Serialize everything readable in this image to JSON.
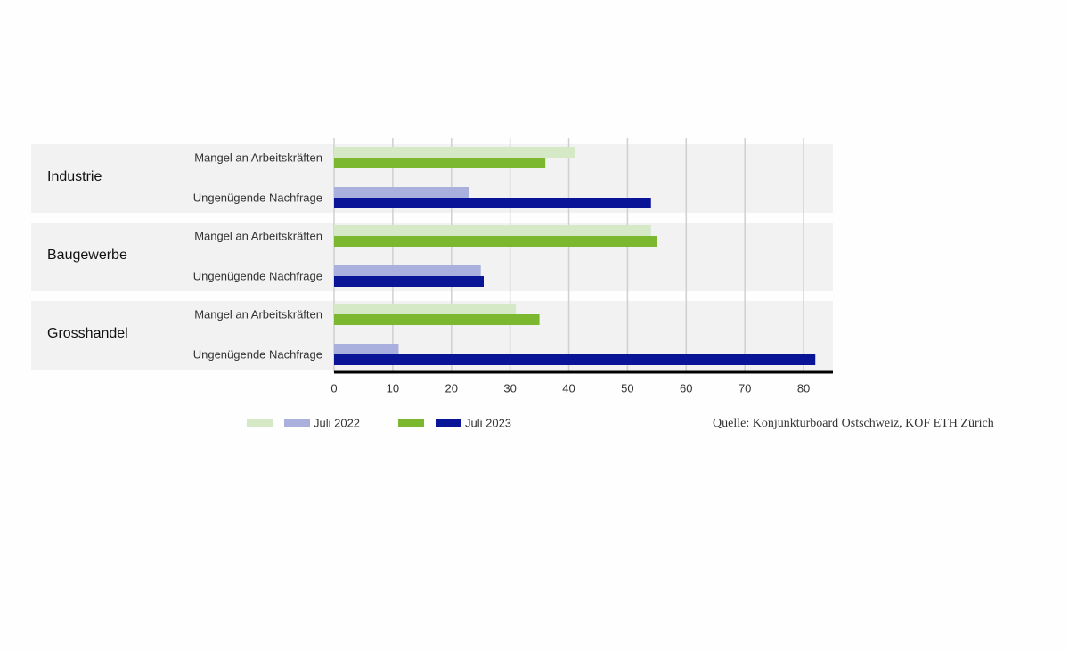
{
  "chart_data": {
    "type": "grouped-hbar",
    "groups": [
      "Industrie",
      "Baugewerbe",
      "Grosshandel"
    ],
    "categories": [
      "Mangel an Arbeitskräften",
      "Ungenügende Nachfrage"
    ],
    "series": [
      {
        "name": "Juli 2022",
        "colors": [
          "#d6e9c6",
          "#aab0de"
        ],
        "values": [
          [
            41,
            23
          ],
          [
            54,
            25
          ],
          [
            31,
            11
          ]
        ]
      },
      {
        "name": "Juli 2023",
        "colors": [
          "#7cb82f",
          "#0a1496"
        ],
        "values": [
          [
            36,
            54
          ],
          [
            55,
            25.5
          ],
          [
            35,
            82
          ]
        ]
      }
    ],
    "xlim": [
      0,
      85
    ],
    "xticks": [
      0,
      10,
      20,
      30,
      40,
      50,
      60,
      70,
      80
    ],
    "grid": true,
    "source": "Quelle: Konjunkturboard Ostschweiz, KOF ETH Zürich"
  }
}
